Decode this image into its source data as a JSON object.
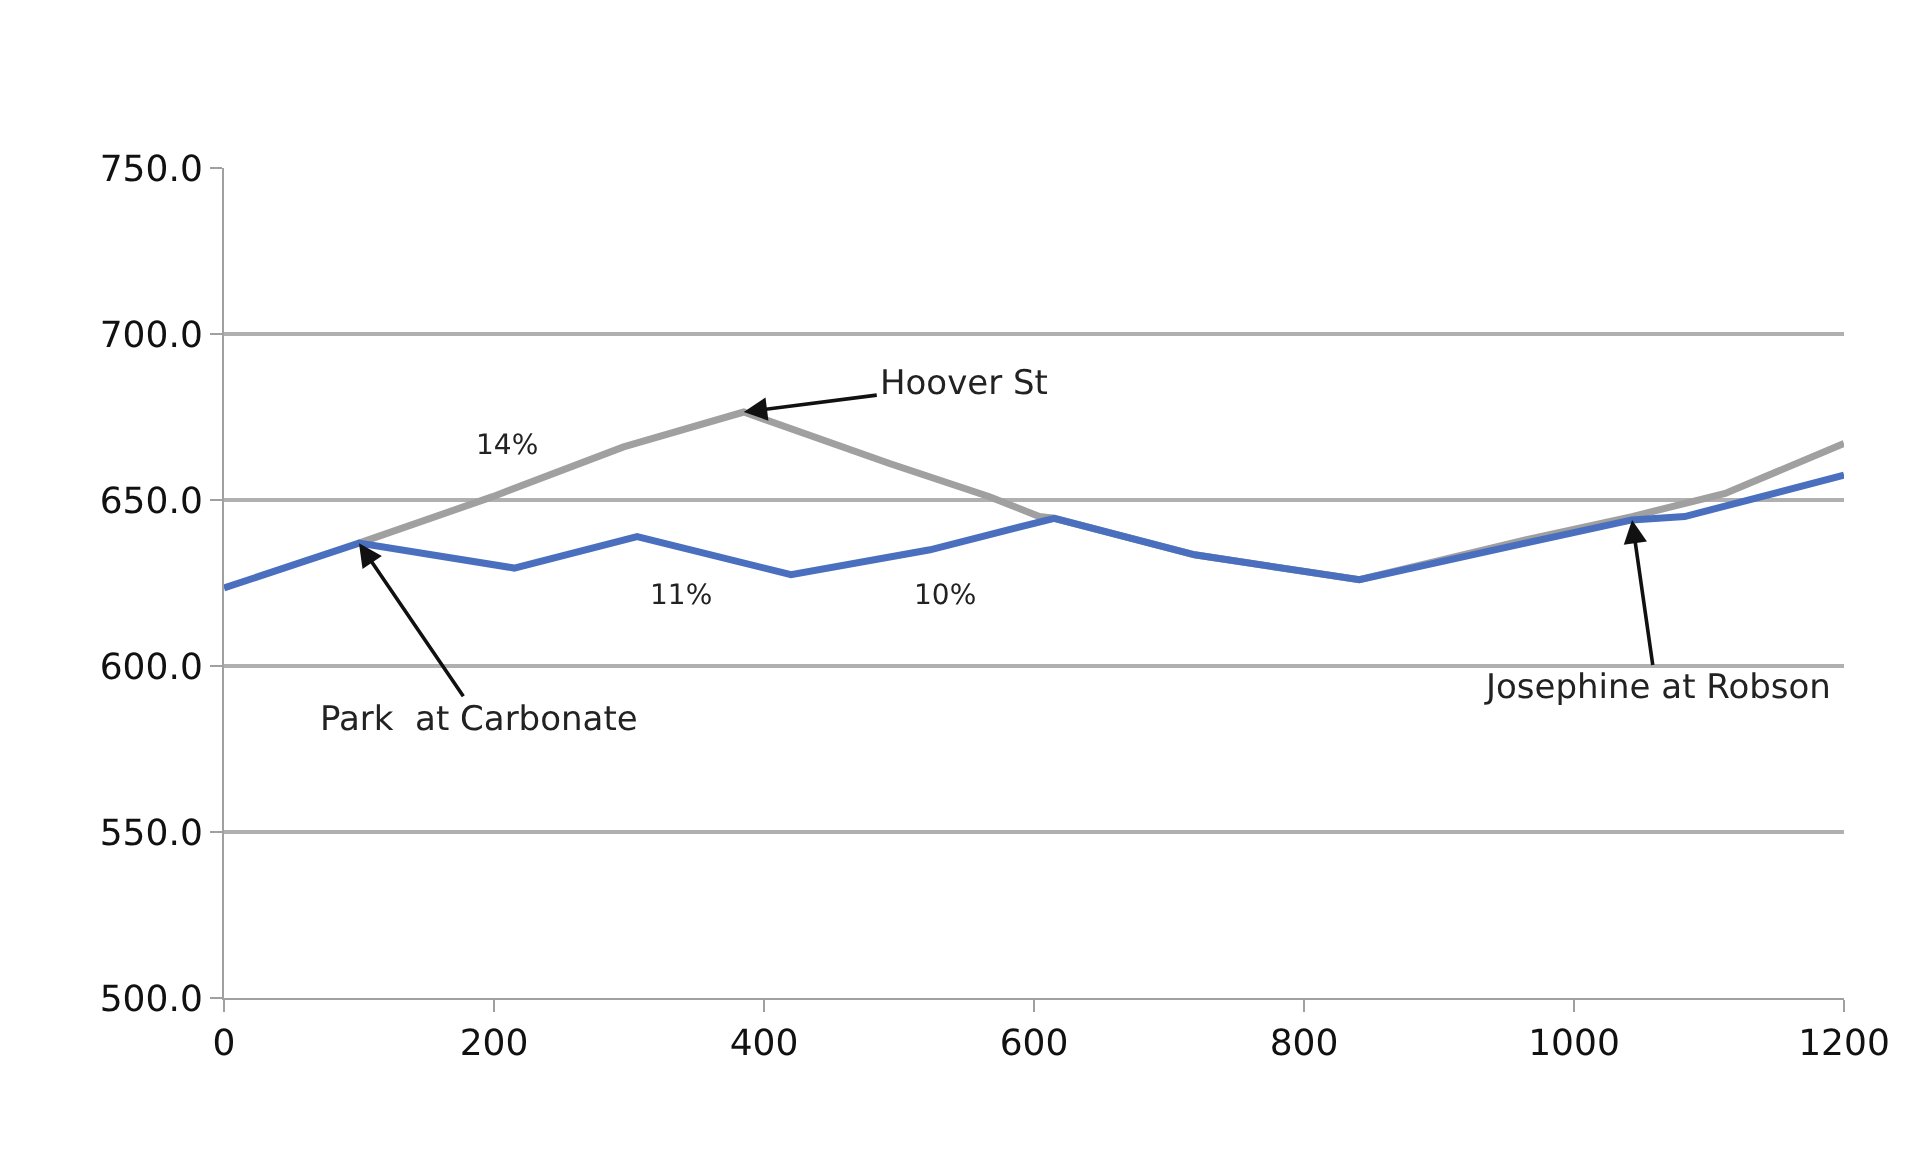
{
  "chart_data": {
    "type": "line",
    "series": [
      {
        "color": "#a0a0a0",
        "x": [
          100,
          199,
          296,
          385,
          493,
          567,
          604,
          615,
          719,
          841,
          964,
          1043,
          1112,
          1200
        ],
        "values": [
          637,
          651,
          666,
          676.5,
          661,
          651,
          645,
          644.5,
          633.5,
          626,
          638,
          645,
          652,
          667
        ]
      },
      {
        "color": "#4a6fbf",
        "x": [
          0,
          100,
          215,
          306,
          420,
          523,
          615,
          719,
          841,
          964,
          1043,
          1082,
          1200
        ],
        "values": [
          623.5,
          637,
          629.5,
          639,
          627.5,
          635,
          644.5,
          633.5,
          626,
          637,
          644,
          645,
          657.5
        ]
      }
    ],
    "xlim": [
      0,
      1200
    ],
    "xticks": [
      0,
      200,
      400,
      600,
      800,
      1000,
      1200
    ],
    "ylim": [
      500,
      750
    ],
    "yticks": [
      {
        "value": 500,
        "label": "500.0"
      },
      {
        "value": 550,
        "label": "550.0"
      },
      {
        "value": 600,
        "label": "600.0"
      },
      {
        "value": 650,
        "label": "650.0"
      },
      {
        "value": 700,
        "label": "700.0"
      },
      {
        "value": 750,
        "label": "750.0"
      }
    ],
    "grid": "y",
    "marker": "none",
    "line_style": "solid",
    "annotations": [
      {
        "text": "Hoover St",
        "x": 385,
        "y": 676.5
      },
      {
        "text": "Park  at Carbonate",
        "x": 100,
        "y": 637
      },
      {
        "text": "Josephine at Robson",
        "x": 1043,
        "y": 644
      },
      "14%",
      "11%",
      "10%"
    ]
  }
}
